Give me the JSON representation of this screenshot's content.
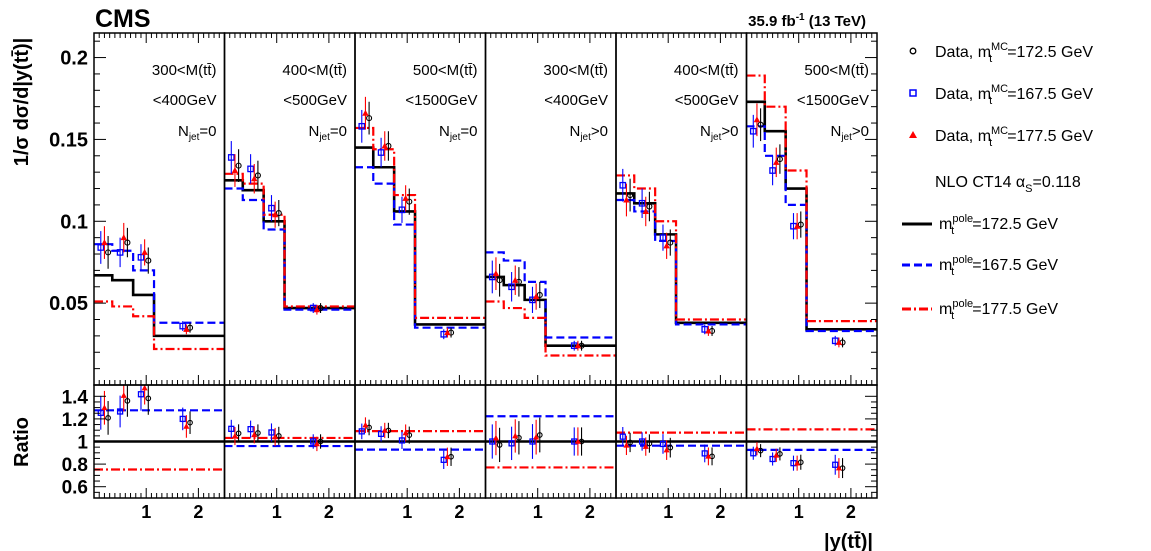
{
  "header": {
    "experiment": "CMS",
    "lumi": "35.9 fb",
    "lumi_exp": "-1",
    "energy": " (13 TeV)"
  },
  "axes": {
    "ylabel_top": "1/σ dσ/d|y(tt̄)|",
    "ylabel_ratio": "Ratio",
    "xlabel": "|y(tt̄)|",
    "ylim_top": [
      0.0,
      0.215
    ],
    "yticks_top": [
      "0.05",
      "0.1",
      "0.15",
      "0.2"
    ],
    "ylim_ratio": [
      0.5,
      1.5
    ],
    "yticks_ratio": [
      "0.6",
      "0.8",
      "1",
      "1.2",
      "1.4"
    ],
    "xlim_panel": [
      0,
      2.5
    ],
    "xticks": [
      "1",
      "2"
    ]
  },
  "panels": [
    {
      "line1": "300<M(tt̄)",
      "line2": "<400GeV",
      "njet": "=0"
    },
    {
      "line1": "400<M(tt̄)",
      "line2": "<500GeV",
      "njet": "=0"
    },
    {
      "line1": "500<M(tt̄)",
      "line2": "<1500GeV",
      "njet": "=0"
    },
    {
      "line1": "300<M(tt̄)",
      "line2": "<400GeV",
      "njet": ">0"
    },
    {
      "line1": "400<M(tt̄)",
      "line2": "<500GeV",
      "njet": ">0"
    },
    {
      "line1": "500<M(tt̄)",
      "line2": "<1500GeV",
      "njet": ">0"
    }
  ],
  "legend": {
    "data_nominal": "Data, m",
    "data_nominal_sup": "MC",
    "data_nominal_sub": "t",
    "data_nominal_val": "=172.5 GeV",
    "data_low_val": "=167.5 GeV",
    "data_high_val": "=177.5 GeV",
    "theory_label": "NLO CT14 α",
    "theory_sub": "S",
    "theory_val": "=0.118",
    "pole_sup": "pole",
    "pole_nominal_val": "=172.5 GeV",
    "pole_low_val": "=167.5 GeV",
    "pole_high_val": "=177.5 GeV"
  },
  "colors": {
    "nominal": "#000000",
    "low": "#0000ff",
    "high": "#ff0000"
  },
  "chart_data": {
    "type": "line",
    "bin_edges": [
      0,
      0.35,
      0.75,
      1.15,
      2.5
    ],
    "bin_centers": [
      0.18,
      0.55,
      0.95,
      1.75
    ],
    "theory": [
      {
        "name": "m_t^pole=172.5 GeV",
        "panels": [
          [
            0.067,
            0.064,
            0.055,
            0.03
          ],
          [
            0.125,
            0.119,
            0.1,
            0.047
          ],
          [
            0.145,
            0.133,
            0.106,
            0.037
          ],
          [
            0.066,
            0.061,
            0.052,
            0.024
          ],
          [
            0.117,
            0.111,
            0.092,
            0.038
          ],
          [
            0.173,
            0.155,
            0.12,
            0.034
          ]
        ]
      },
      {
        "name": "m_t^pole=167.5 GeV",
        "panels": [
          [
            0.086,
            0.082,
            0.07,
            0.038
          ],
          [
            0.12,
            0.113,
            0.095,
            0.046
          ],
          [
            0.133,
            0.123,
            0.098,
            0.035
          ],
          [
            0.081,
            0.076,
            0.063,
            0.029
          ],
          [
            0.113,
            0.106,
            0.088,
            0.037
          ],
          [
            0.158,
            0.14,
            0.11,
            0.033
          ]
        ]
      },
      {
        "name": "m_t^pole=177.5 GeV",
        "panels": [
          [
            0.051,
            0.048,
            0.042,
            0.022
          ],
          [
            0.129,
            0.123,
            0.104,
            0.048
          ],
          [
            0.157,
            0.144,
            0.116,
            0.041
          ],
          [
            0.051,
            0.047,
            0.041,
            0.018
          ],
          [
            0.128,
            0.12,
            0.1,
            0.04
          ],
          [
            0.189,
            0.17,
            0.131,
            0.039
          ]
        ]
      }
    ],
    "data": [
      {
        "name": "Data, m_t^MC=172.5 GeV",
        "panels": [
          [
            0.081,
            0.087,
            0.076,
            0.035
          ],
          [
            0.134,
            0.128,
            0.105,
            0.047
          ],
          [
            0.163,
            0.146,
            0.112,
            0.032
          ],
          [
            0.064,
            0.063,
            0.055,
            0.024
          ],
          [
            0.116,
            0.109,
            0.087,
            0.033
          ],
          [
            0.159,
            0.138,
            0.098,
            0.026
          ]
        ]
      },
      {
        "name": "Data, m_t^MC=167.5 GeV",
        "panels": [
          [
            0.084,
            0.081,
            0.078,
            0.036
          ],
          [
            0.139,
            0.132,
            0.108,
            0.047
          ],
          [
            0.158,
            0.142,
            0.107,
            0.031
          ],
          [
            0.066,
            0.06,
            0.052,
            0.024
          ],
          [
            0.122,
            0.111,
            0.09,
            0.034
          ],
          [
            0.155,
            0.131,
            0.097,
            0.027
          ]
        ]
      },
      {
        "name": "Data, m_t^MC=177.5 GeV",
        "panels": [
          [
            0.087,
            0.09,
            0.081,
            0.034
          ],
          [
            0.131,
            0.126,
            0.104,
            0.046
          ],
          [
            0.166,
            0.146,
            0.114,
            0.032
          ],
          [
            0.068,
            0.064,
            0.054,
            0.024
          ],
          [
            0.113,
            0.106,
            0.085,
            0.033
          ],
          [
            0.162,
            0.136,
            0.097,
            0.026
          ]
        ]
      }
    ],
    "data_errors": [
      0.01,
      0.009,
      0.008,
      0.003
    ]
  }
}
